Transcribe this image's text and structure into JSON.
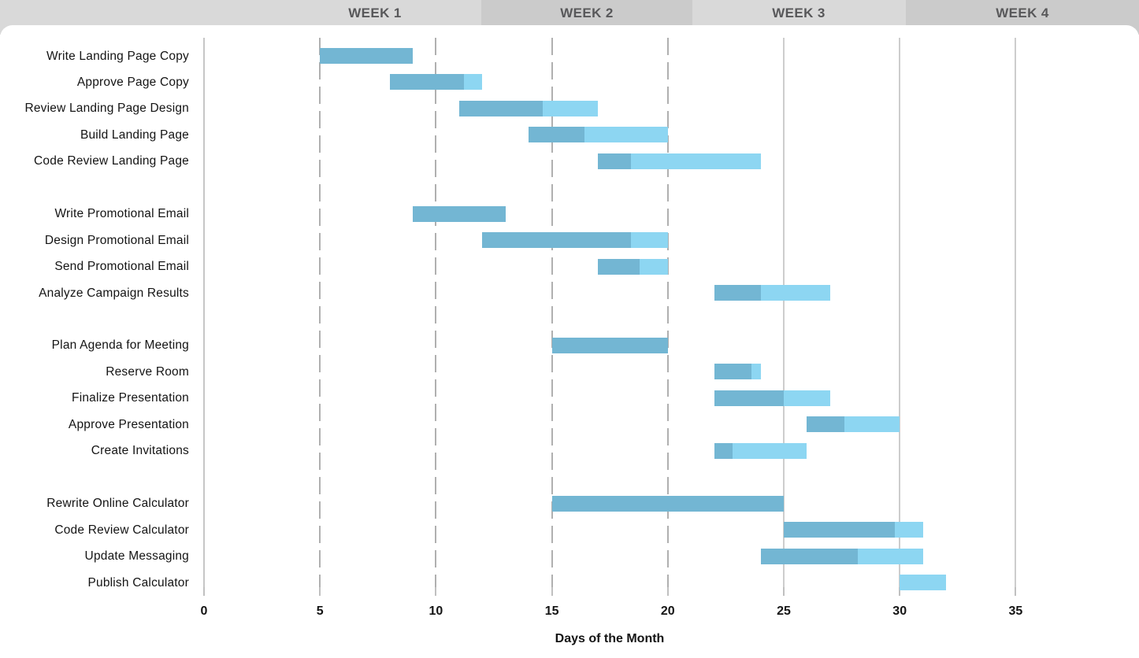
{
  "header": {
    "weeks": [
      {
        "label": "WEEK 1"
      },
      {
        "label": "WEEK 2"
      },
      {
        "label": "WEEK 3"
      },
      {
        "label": "WEEK 4"
      }
    ]
  },
  "chart_data": {
    "type": "bar",
    "subtype": "gantt",
    "title": "",
    "xlabel": "Days of the Month",
    "xlim": [
      0,
      40.3
    ],
    "grid": "vertical",
    "legend": "none",
    "colors": {
      "complete": "#73b6d3",
      "remaining": "#8dd6f2",
      "band_light": "#d9d9d9",
      "band_dark": "#cbcbcb",
      "week_text": "#58585a"
    },
    "x_ticks": [
      {
        "label": "0",
        "value": 0,
        "style": "axis"
      },
      {
        "label": "5",
        "value": 5,
        "style": "dashed"
      },
      {
        "label": "10",
        "value": 10,
        "style": "dashed"
      },
      {
        "label": "15",
        "value": 15,
        "style": "dashed"
      },
      {
        "label": "20",
        "value": 20,
        "style": "dashed"
      },
      {
        "label": "25",
        "value": 25,
        "style": "solid"
      },
      {
        "label": "30",
        "value": 30,
        "style": "solid"
      },
      {
        "label": "35",
        "value": 35,
        "style": "solid"
      }
    ],
    "groups": [
      {
        "tasks": [
          {
            "label": "Write Landing Page Copy",
            "start": 5,
            "end": 9,
            "percent_complete": 100
          },
          {
            "label": "Approve Page Copy",
            "start": 8,
            "end": 12,
            "percent_complete": 80
          },
          {
            "label": "Review Landing Page Design",
            "start": 11,
            "end": 17,
            "percent_complete": 60
          },
          {
            "label": "Build Landing Page",
            "start": 14,
            "end": 20,
            "percent_complete": 40
          },
          {
            "label": "Code Review Landing Page",
            "start": 17,
            "end": 24,
            "percent_complete": 20
          }
        ]
      },
      {
        "tasks": [
          {
            "label": "Write Promotional Email",
            "start": 9,
            "end": 13,
            "percent_complete": 100
          },
          {
            "label": "Design Promotional Email",
            "start": 12,
            "end": 20,
            "percent_complete": 80
          },
          {
            "label": "Send Promotional Email",
            "start": 17,
            "end": 20,
            "percent_complete": 60
          },
          {
            "label": "Analyze Campaign Results",
            "start": 22,
            "end": 27,
            "percent_complete": 40
          }
        ]
      },
      {
        "tasks": [
          {
            "label": "Plan Agenda for Meeting",
            "start": 15,
            "end": 20,
            "percent_complete": 100
          },
          {
            "label": "Reserve Room",
            "start": 22,
            "end": 24,
            "percent_complete": 80
          },
          {
            "label": "Finalize Presentation",
            "start": 22,
            "end": 27,
            "percent_complete": 60
          },
          {
            "label": "Approve Presentation",
            "start": 26,
            "end": 30,
            "percent_complete": 40
          },
          {
            "label": "Create Invitations",
            "start": 22,
            "end": 26,
            "percent_complete": 20
          }
        ]
      },
      {
        "tasks": [
          {
            "label": "Rewrite Online Calculator",
            "start": 15,
            "end": 25,
            "percent_complete": 100
          },
          {
            "label": "Code Review Calculator",
            "start": 25,
            "end": 31,
            "percent_complete": 80
          },
          {
            "label": "Update Messaging",
            "start": 24,
            "end": 31,
            "percent_complete": 60
          },
          {
            "label": "Publish Calculator",
            "start": 30,
            "end": 32,
            "percent_complete": 0
          }
        ]
      }
    ]
  }
}
